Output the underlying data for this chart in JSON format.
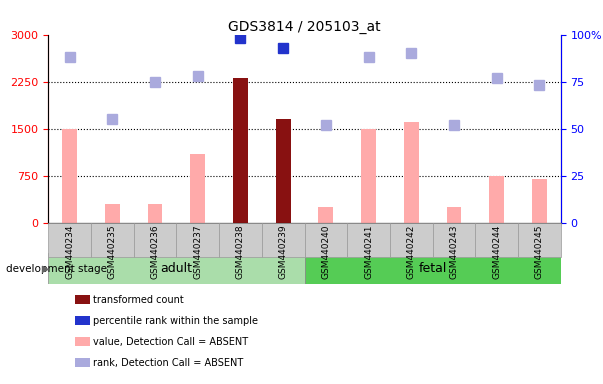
{
  "title": "GDS3814 / 205103_at",
  "samples": [
    "GSM440234",
    "GSM440235",
    "GSM440236",
    "GSM440237",
    "GSM440238",
    "GSM440239",
    "GSM440240",
    "GSM440241",
    "GSM440242",
    "GSM440243",
    "GSM440244",
    "GSM440245"
  ],
  "bar_values": [
    1500,
    300,
    300,
    1100,
    2300,
    1650,
    250,
    1500,
    1600,
    250,
    750,
    700
  ],
  "bar_colors": [
    "#ffaaaa",
    "#ffaaaa",
    "#ffaaaa",
    "#ffaaaa",
    "#881111",
    "#881111",
    "#ffaaaa",
    "#ffaaaa",
    "#ffaaaa",
    "#ffaaaa",
    "#ffaaaa",
    "#ffaaaa"
  ],
  "rank_values": [
    88,
    55,
    75,
    78,
    98,
    93,
    52,
    88,
    90,
    52,
    77,
    73
  ],
  "rank_colors": [
    "#aaaadd",
    "#aaaadd",
    "#aaaadd",
    "#aaaadd",
    "#2233cc",
    "#2233cc",
    "#aaaadd",
    "#aaaadd",
    "#aaaadd",
    "#aaaadd",
    "#aaaadd",
    "#aaaadd"
  ],
  "adult_count": 6,
  "fetal_count": 6,
  "ylim_left": [
    0,
    3000
  ],
  "ylim_right": [
    0,
    100
  ],
  "yticks_left": [
    0,
    750,
    1500,
    2250,
    3000
  ],
  "yticks_right": [
    0,
    25,
    50,
    75,
    100
  ],
  "grid_values": [
    750,
    1500,
    2250
  ],
  "legend_items": [
    {
      "label": "transformed count",
      "color": "#881111"
    },
    {
      "label": "percentile rank within the sample",
      "color": "#2233cc"
    },
    {
      "label": "value, Detection Call = ABSENT",
      "color": "#ffaaaa"
    },
    {
      "label": "rank, Detection Call = ABSENT",
      "color": "#aaaadd"
    }
  ],
  "adult_color": "#aaddaa",
  "fetal_color": "#55cc55",
  "stage_label": "development stage",
  "adult_label": "adult",
  "fetal_label": "fetal",
  "bar_width": 0.35,
  "rank_marker_size": 7,
  "sample_box_color": "#cccccc",
  "sample_box_edge": "#999999"
}
